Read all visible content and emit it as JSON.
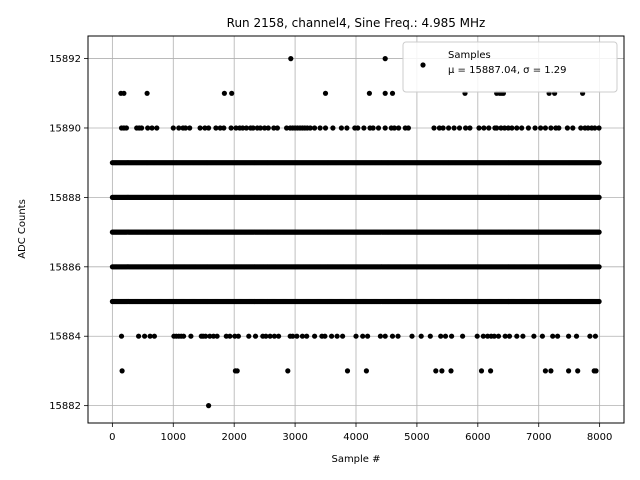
{
  "chart_data": {
    "type": "scatter",
    "title": "Run 2158, channel4, Sine Freq.: 4.985 MHz",
    "xlabel": "Sample #",
    "ylabel": "ADC Counts",
    "xlim": [
      -400,
      8400
    ],
    "ylim": [
      15881.5,
      15892.65
    ],
    "x_ticks": [
      "0",
      "1000",
      "2000",
      "3000",
      "4000",
      "5000",
      "6000",
      "7000",
      "8000"
    ],
    "y_ticks": [
      "15882",
      "15884",
      "15886",
      "15888",
      "15890",
      "15892"
    ],
    "grid": true,
    "legend_position": "top-right",
    "legend": {
      "label": "Samples",
      "stats": "μ = 15887.04, σ = 1.29"
    },
    "marker_color": "#000000",
    "series": [
      {
        "name": "Samples",
        "n_samples": 8000,
        "dense_levels": [
          15885,
          15886,
          15887,
          15888,
          15889
        ],
        "sparse_points": [
          {
            "y": 15892,
            "x": [
              2930,
              4480
            ]
          },
          {
            "y": 15891,
            "x": [
              140,
              190,
              570,
              1840,
              1960,
              3500,
              4220,
              4480,
              4600,
              5790,
              6310,
              6360,
              6390,
              6420,
              7170,
              7260,
              7720
            ]
          },
          {
            "y": 15890,
            "x": [
              150,
              190,
              230,
              400,
              440,
              480,
              580,
              650,
              730,
              1000,
              1090,
              1160,
              1200,
              1270,
              1440,
              1520,
              1580,
              1700,
              1770,
              1830,
              1950,
              2030,
              2090,
              2140,
              2200,
              2270,
              2310,
              2380,
              2430,
              2500,
              2560,
              2650,
              2710,
              2860,
              2920,
              2960,
              3000,
              3040,
              3080,
              3120,
              3160,
              3200,
              3250,
              3320,
              3410,
              3500,
              3620,
              3760,
              3850,
              3980,
              4030,
              4130,
              4230,
              4280,
              4370,
              4480,
              4580,
              4630,
              4700,
              4810,
              4860,
              5280,
              5370,
              5430,
              5520,
              5610,
              5700,
              5800,
              5870,
              6020,
              6100,
              6180,
              6280,
              6310,
              6380,
              6440,
              6500,
              6560,
              6640,
              6720,
              6830,
              6940,
              7030,
              7110,
              7200,
              7280,
              7330,
              7470,
              7560,
              7690,
              7760,
              7810,
              7870,
              7920,
              7990
            ]
          },
          {
            "y": 15884,
            "x": [
              150,
              430,
              530,
              620,
              690,
              1010,
              1050,
              1090,
              1130,
              1170,
              1290,
              1460,
              1490,
              1530,
              1600,
              1660,
              1720,
              1870,
              1930,
              2010,
              2070,
              2240,
              2350,
              2470,
              2520,
              2590,
              2660,
              2730,
              2920,
              2960,
              3030,
              3120,
              3190,
              3320,
              3440,
              3490,
              3600,
              3690,
              3780,
              4000,
              4110,
              4190,
              4400,
              4480,
              4600,
              4690,
              4920,
              5070,
              5220,
              5390,
              5470,
              5570,
              5750,
              5990,
              6090,
              6160,
              6220,
              6270,
              6340,
              6450,
              6520,
              6640,
              6740,
              6920,
              7060,
              7230,
              7310,
              7490,
              7620,
              7840,
              7930
            ]
          },
          {
            "y": 15883,
            "x": [
              160,
              2020,
              2050,
              2880,
              3860,
              4170,
              5310,
              5410,
              5560,
              6060,
              6210,
              7110,
              7200,
              7490,
              7640,
              7910,
              7940
            ]
          },
          {
            "y": 15882,
            "x": [
              1580
            ]
          }
        ]
      }
    ]
  }
}
